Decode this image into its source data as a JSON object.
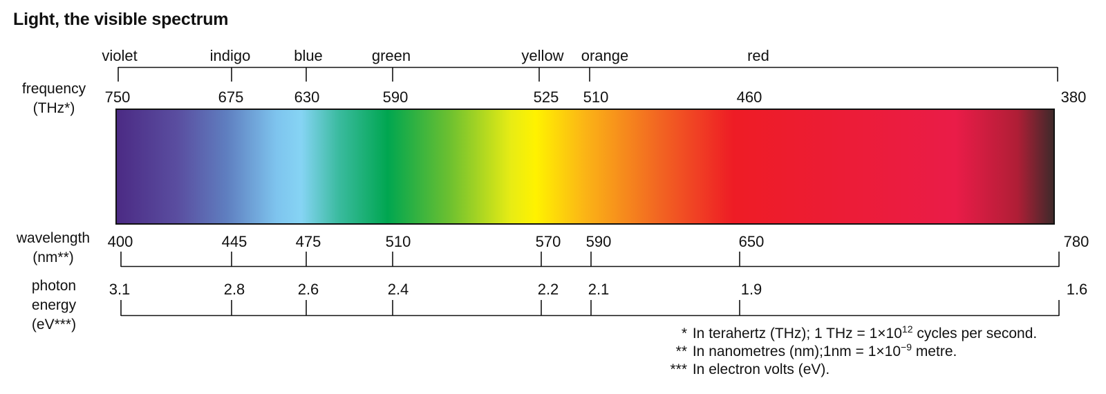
{
  "title": "Light, the visible spectrum",
  "colors": [
    {
      "name": "violet",
      "hex": "#4b2a84"
    },
    {
      "name": "indigo",
      "hex": "#5570bb"
    },
    {
      "name": "blue",
      "hex": "#86d4f4"
    },
    {
      "name": "green",
      "hex": "#00a650"
    },
    {
      "name": "yellow",
      "hex": "#fff200"
    },
    {
      "name": "orange",
      "hex": "#fbb416"
    },
    {
      "name": "red",
      "hex": "#ee1c25"
    }
  ],
  "frequency": {
    "label_line1": "frequency",
    "label_line2": "(THz*)",
    "ticks": [
      "750",
      "675",
      "630",
      "590",
      "525",
      "510",
      "460",
      "380"
    ]
  },
  "wavelength": {
    "label_line1": "wavelength",
    "label_line2": "(nm**)",
    "ticks": [
      "400",
      "445",
      "475",
      "510",
      "570",
      "590",
      "650",
      "780"
    ]
  },
  "energy": {
    "label_line1": "photon",
    "label_line2": "energy",
    "label_line3": "(eV***)",
    "ticks": [
      "3.1",
      "2.8",
      "2.6",
      "2.4",
      "2.2",
      "2.1",
      "1.9",
      "1.6"
    ]
  },
  "notes": {
    "n1_star": "*",
    "n1_text": "In terahertz (THz); 1 THz = 1×10",
    "n1_exp": "12",
    "n1_tail": " cycles per second.",
    "n2_star": "**",
    "n2_text": "In nanometres (nm);1nm = 1×10",
    "n2_exp": "−9",
    "n2_tail": " metre.",
    "n3_star": "***",
    "n3_text": "In electron volts (eV)."
  },
  "spectrum_stops": [
    {
      "wavelength": 400,
      "hex": "#4b2a84"
    },
    {
      "wavelength": 425,
      "hex": "#5a4ea0"
    },
    {
      "wavelength": 445,
      "hex": "#5f7fc0"
    },
    {
      "wavelength": 465,
      "hex": "#7ec4ee"
    },
    {
      "wavelength": 475,
      "hex": "#86d4f4"
    },
    {
      "wavelength": 490,
      "hex": "#3bbba0"
    },
    {
      "wavelength": 510,
      "hex": "#00a650"
    },
    {
      "wavelength": 535,
      "hex": "#6cc030"
    },
    {
      "wavelength": 560,
      "hex": "#e8ec14"
    },
    {
      "wavelength": 570,
      "hex": "#fff200"
    },
    {
      "wavelength": 590,
      "hex": "#fbb416"
    },
    {
      "wavelength": 620,
      "hex": "#f26522"
    },
    {
      "wavelength": 650,
      "hex": "#ee1c25"
    },
    {
      "wavelength": 740,
      "hex": "#ea1c48"
    },
    {
      "wavelength": 765,
      "hex": "#b01e36"
    },
    {
      "wavelength": 780,
      "hex": "#3c2a2a"
    }
  ]
}
